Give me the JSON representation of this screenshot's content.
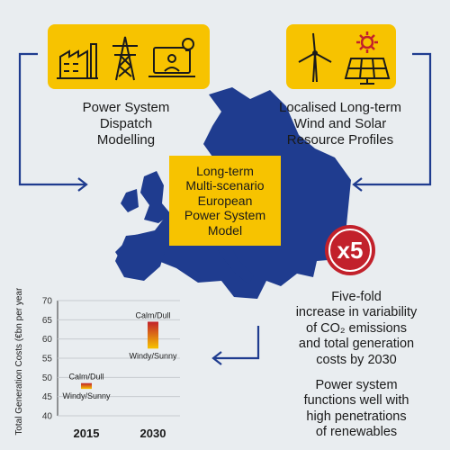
{
  "boxes": {
    "dispatch_label": [
      "Power System",
      "Dispatch",
      "Modelling"
    ],
    "resource_label": [
      "Localised Long-term",
      "Wind and Solar",
      "Resource Profiles"
    ],
    "center_label": [
      "Long-term",
      "Multi-scenario",
      "European",
      "Power System",
      "Model"
    ]
  },
  "badge": {
    "text": "x5"
  },
  "findings": {
    "variability": [
      "Five-fold",
      "increase in variability",
      "of CO₂ emissions",
      "and total generation",
      "costs by 2030"
    ],
    "renewables": [
      "Power system",
      "functions well with",
      "high penetrations",
      "of renewables"
    ]
  },
  "icons": [
    "factory-icon",
    "pylon-icon",
    "laptop-lightbulb-icon",
    "wind-turbine-icon",
    "sun-icon",
    "solar-panel-icon",
    "europe-map"
  ],
  "colors": {
    "yellow": "#f7c300",
    "navy": "#1f3c8f",
    "red": "#c2212b",
    "background": "#e9edf0"
  },
  "chart_data": {
    "type": "range",
    "ylabel": "Total Generation Costs (€bn per year)",
    "ylim": [
      40,
      70
    ],
    "yticks": [
      40,
      45,
      50,
      55,
      60,
      65,
      70
    ],
    "categories": [
      "2015",
      "2030"
    ],
    "ranges": [
      {
        "category": "2015",
        "low": 47,
        "high": 48.5,
        "high_label": "Calm/Dull",
        "low_label": "Windy/Sunny"
      },
      {
        "category": "2030",
        "low": 57.5,
        "high": 64.5,
        "high_label": "Calm/Dull",
        "low_label": "Windy/Sunny"
      }
    ]
  }
}
